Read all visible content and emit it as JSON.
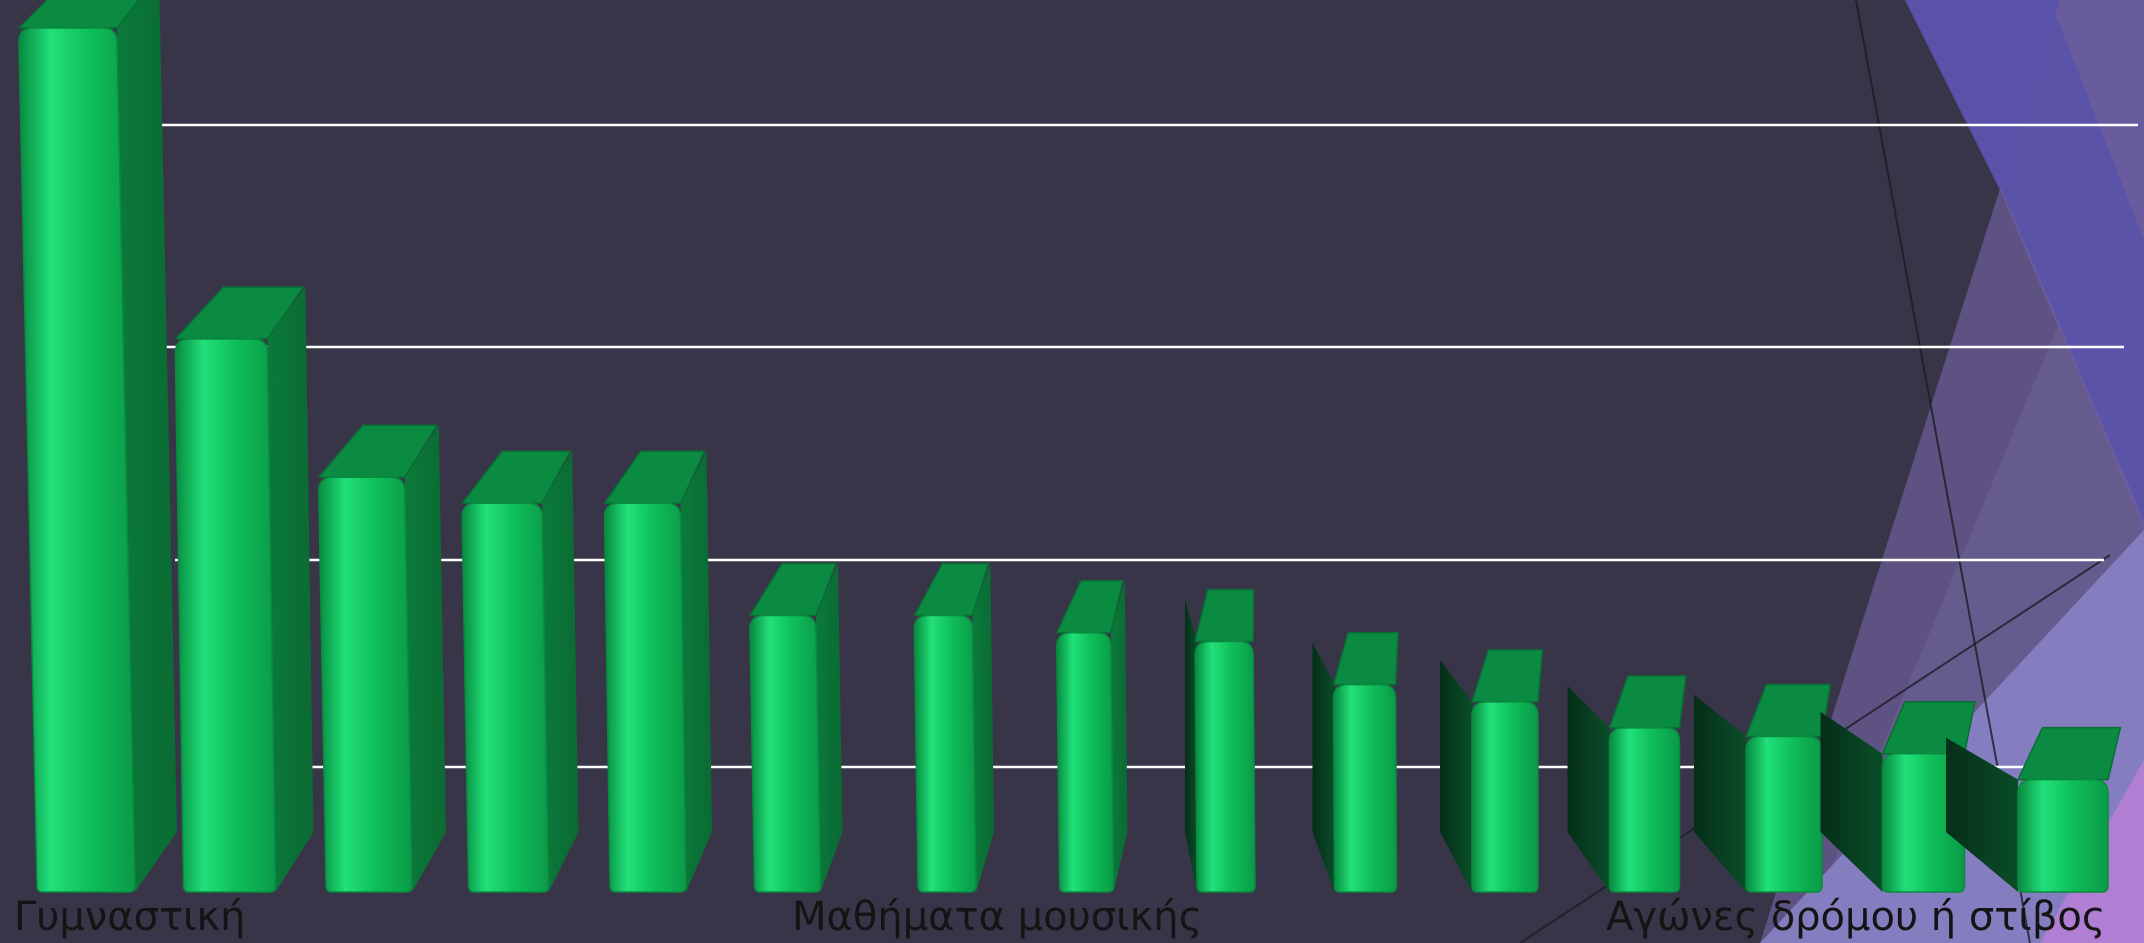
{
  "chart_data": {
    "type": "bar",
    "style": "3d-cylinder",
    "categories": [
      "Γυμναστική",
      "",
      "",
      "",
      "",
      "Μαθήματα μουσικής",
      "",
      "",
      "",
      "",
      "",
      "",
      "Αγώνες δρόμου ή στίβος",
      "",
      ""
    ],
    "values": [
      100,
      64,
      48,
      45,
      45,
      32,
      32,
      30,
      29,
      24,
      22,
      19,
      18,
      16,
      13
    ],
    "ylim": [
      0,
      100
    ],
    "gridlines": [
      25,
      50,
      75,
      100
    ],
    "grid": true,
    "legend": "none",
    "colors": {
      "background": "#383548",
      "bar_front": "#0fbf59",
      "bar_highlight": "#22e07a",
      "bar_side": "#0a7a3a",
      "bar_top": "#0b8a42",
      "gridline": "#ffffff",
      "label": "#141414",
      "accent_blue": "#5a52a8",
      "accent_lavender": "#8a84c8",
      "accent_pink": "#b07ed2"
    }
  }
}
